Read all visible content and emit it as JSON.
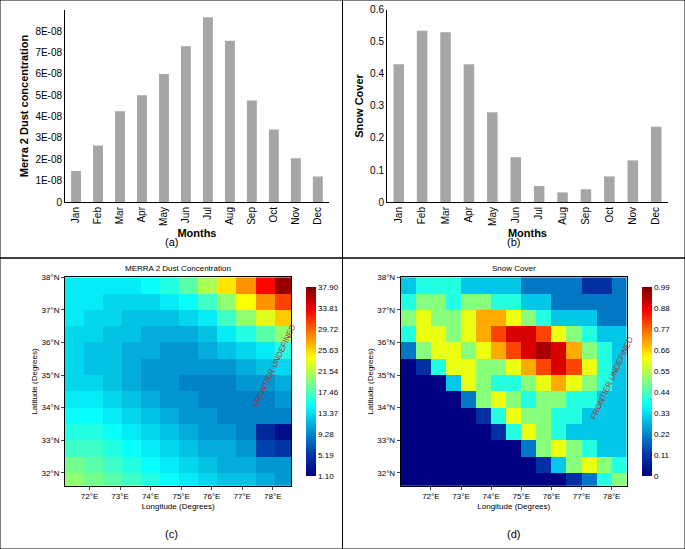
{
  "chart_data": [
    {
      "type": "bar",
      "panel": "(a)",
      "x_label": "Months",
      "y_label": "Merra 2 Dust concentration",
      "categories": [
        "Jan",
        "Feb",
        "Mar",
        "Apr",
        "May",
        "Jun",
        "Jul",
        "Aug",
        "Sep",
        "Oct",
        "Nov",
        "Dec"
      ],
      "values": [
        1.45e-08,
        2.65e-08,
        4.25e-08,
        5e-08,
        6e-08,
        7.3e-08,
        8.65e-08,
        7.55e-08,
        4.75e-08,
        3.4e-08,
        2.05e-08,
        1.2e-08
      ],
      "color": "#a6a6a6",
      "grid": false,
      "ylim": [
        0,
        9e-08
      ],
      "yticks": [
        0,
        {
          "value": 1e-08,
          "label": "1E-08"
        },
        {
          "value": 2e-08,
          "label": "2E-08"
        },
        {
          "value": 3e-08,
          "label": "3E-08"
        },
        {
          "value": 4e-08,
          "label": "4E-08"
        },
        {
          "value": 5e-08,
          "label": "5E-08"
        },
        {
          "value": 6e-08,
          "label": "6E-08"
        },
        {
          "value": 7e-08,
          "label": "7E-08"
        },
        {
          "value": 8e-08,
          "label": "8E-08"
        }
      ]
    },
    {
      "type": "bar",
      "panel": "(b)",
      "x_label": "Months",
      "y_label": "Snow Cover",
      "categories": [
        "Jan",
        "Feb",
        "Mar",
        "Apr",
        "May",
        "Jun",
        "Jul",
        "Aug",
        "Sep",
        "Oct",
        "Nov",
        "Dec"
      ],
      "values": [
        0.43,
        0.535,
        0.53,
        0.43,
        0.28,
        0.14,
        0.05,
        0.03,
        0.04,
        0.08,
        0.13,
        0.235
      ],
      "color": "#a6a6a6",
      "grid": false,
      "ylim": [
        0,
        0.6
      ],
      "yticks": [
        0,
        0.1,
        0.2,
        0.3,
        0.4,
        0.5,
        0.6
      ]
    },
    {
      "type": "heatmap",
      "panel": "(c)",
      "title": "MERRA 2 Dust Concentration",
      "x_label": "Longitude (Degrees)",
      "y_label": "Latitude (Degrees)",
      "xlim": [
        71.2,
        78.6
      ],
      "xticks": [
        {
          "value": 72,
          "label": "72°E"
        },
        {
          "value": 73,
          "label": "73°E"
        },
        {
          "value": 74,
          "label": "74°E"
        },
        {
          "value": 75,
          "label": "75°E"
        },
        {
          "value": 76,
          "label": "76°E"
        },
        {
          "value": 77,
          "label": "77°E"
        },
        {
          "value": 78,
          "label": "78°E"
        }
      ],
      "ylim": [
        31.6,
        38
      ],
      "yticks": [
        {
          "value": 32,
          "label": "32°N"
        },
        {
          "value": 33,
          "label": "33°N"
        },
        {
          "value": 34,
          "label": "34°N"
        },
        {
          "value": 35,
          "label": "35°N"
        },
        {
          "value": 36,
          "label": "36°N"
        },
        {
          "value": 37,
          "label": "37°N"
        },
        {
          "value": 38,
          "label": "38°N"
        }
      ],
      "x": [
        71.5,
        72.125,
        72.75,
        73.375,
        74.0,
        74.625,
        75.25,
        75.875,
        76.5,
        77.125,
        77.75,
        78.375
      ],
      "y": [
        31.75,
        32.25,
        32.75,
        33.25,
        33.75,
        34.25,
        34.75,
        35.25,
        35.75,
        36.25,
        36.75,
        37.25,
        37.75
      ],
      "z": [
        [
          20,
          19,
          18,
          17,
          16,
          15,
          14,
          13,
          12,
          12,
          11,
          10
        ],
        [
          19,
          18,
          17,
          16,
          15,
          14,
          13,
          12,
          11,
          11,
          10,
          10
        ],
        [
          17,
          17,
          16,
          15,
          14,
          13,
          12,
          11,
          11,
          10,
          6,
          5
        ],
        [
          16,
          16,
          15,
          14,
          13,
          12,
          11,
          10,
          10,
          9,
          4,
          2
        ],
        [
          15,
          15,
          14,
          13,
          12,
          11,
          10,
          10,
          9,
          9,
          9,
          9
        ],
        [
          14,
          14,
          13,
          12,
          11,
          10,
          10,
          9,
          9,
          9,
          9,
          10
        ],
        [
          13,
          13,
          12,
          11,
          10,
          10,
          9,
          9,
          9,
          10,
          10,
          11
        ],
        [
          13,
          12,
          12,
          11,
          10,
          10,
          10,
          10,
          10,
          11,
          12,
          13
        ],
        [
          13,
          12,
          12,
          11,
          11,
          10,
          10,
          11,
          12,
          13,
          14,
          16
        ],
        [
          13,
          13,
          12,
          12,
          11,
          11,
          11,
          12,
          14,
          16,
          18,
          20
        ],
        [
          14,
          13,
          13,
          12,
          12,
          12,
          13,
          14,
          17,
          20,
          23,
          26
        ],
        [
          14,
          14,
          13,
          13,
          13,
          14,
          15,
          17,
          20,
          24,
          28,
          31
        ],
        [
          14,
          14,
          14,
          14,
          15,
          16,
          18,
          21,
          25,
          28,
          33,
          37
        ]
      ],
      "zlim": [
        1.1,
        37.9
      ],
      "zticks": [
        {
          "value": 1.1,
          "label": "1.10"
        },
        5.19,
        9.28,
        13.37,
        17.46,
        21.54,
        25.63,
        29.72,
        33.81,
        {
          "value": 37.9,
          "label": "37.90"
        }
      ],
      "annotations": [
        {
          "text": "FRONTIER UNDEFINED",
          "x": 78.05,
          "y": 35.3
        }
      ]
    },
    {
      "type": "heatmap",
      "panel": "(d)",
      "title": "Snow Cover",
      "x_label": "Longitude (Degrees)",
      "y_label": "Latitude (Degrees)",
      "xlim": [
        71.0,
        78.5
      ],
      "xticks": [
        {
          "value": 72,
          "label": "72°E"
        },
        {
          "value": 73,
          "label": "73°E"
        },
        {
          "value": 74,
          "label": "74°E"
        },
        {
          "value": 75,
          "label": "75°E"
        },
        {
          "value": 76,
          "label": "76°E"
        },
        {
          "value": 77,
          "label": "77°E"
        },
        {
          "value": 78,
          "label": "78°E"
        }
      ],
      "ylim": [
        31.6,
        38
      ],
      "yticks": [
        {
          "value": 32,
          "label": "32°N"
        },
        {
          "value": 33,
          "label": "33°N"
        },
        {
          "value": 34,
          "label": "34°N"
        },
        {
          "value": 35,
          "label": "35°N"
        },
        {
          "value": 36,
          "label": "36°N"
        },
        {
          "value": 37,
          "label": "37°N"
        },
        {
          "value": 38,
          "label": "38°N"
        }
      ],
      "x": [
        71.25,
        71.75,
        72.25,
        72.75,
        73.25,
        73.75,
        74.25,
        74.75,
        75.25,
        75.75,
        76.25,
        76.75,
        77.25,
        77.75,
        78.25
      ],
      "y": [
        31.75,
        32.25,
        32.75,
        33.25,
        33.75,
        34.25,
        34.75,
        35.25,
        35.75,
        36.25,
        36.75,
        37.25,
        37.75
      ],
      "z": [
        [
          0,
          0,
          0,
          0,
          0,
          0,
          0,
          0,
          0,
          0,
          0,
          0.1,
          0.2,
          0.4,
          0.5
        ],
        [
          0,
          0,
          0,
          0,
          0,
          0,
          0,
          0,
          0,
          0.1,
          0.3,
          0.5,
          0.6,
          0.5,
          0.4
        ],
        [
          0,
          0,
          0,
          0,
          0,
          0,
          0,
          0,
          0.2,
          0.5,
          0.6,
          0.5,
          0.4,
          0.3,
          0.3
        ],
        [
          0,
          0,
          0,
          0,
          0,
          0,
          0.1,
          0.4,
          0.6,
          0.5,
          0.4,
          0.3,
          0.3,
          0.3,
          0.3
        ],
        [
          0,
          0,
          0,
          0,
          0,
          0.1,
          0.4,
          0.6,
          0.5,
          0.5,
          0.4,
          0.4,
          0.3,
          0.3,
          0.3
        ],
        [
          0,
          0,
          0,
          0,
          0.2,
          0.5,
          0.6,
          0.5,
          0.4,
          0.5,
          0.5,
          0.4,
          0.4,
          0.3,
          0.3
        ],
        [
          0,
          0,
          0,
          0.3,
          0.6,
          0.5,
          0.4,
          0.4,
          0.5,
          0.6,
          0.7,
          0.6,
          0.5,
          0.4,
          0.3
        ],
        [
          0,
          0.1,
          0.4,
          0.6,
          0.6,
          0.5,
          0.5,
          0.6,
          0.7,
          0.8,
          0.9,
          0.8,
          0.6,
          0.4,
          0.3
        ],
        [
          0.2,
          0.5,
          0.6,
          0.6,
          0.5,
          0.6,
          0.7,
          0.8,
          0.9,
          0.95,
          0.9,
          0.7,
          0.5,
          0.4,
          0.3
        ],
        [
          0.4,
          0.6,
          0.6,
          0.5,
          0.6,
          0.7,
          0.8,
          0.9,
          0.9,
          0.8,
          0.6,
          0.5,
          0.4,
          0.3,
          0.3
        ],
        [
          0.5,
          0.6,
          0.5,
          0.5,
          0.6,
          0.7,
          0.7,
          0.6,
          0.5,
          0.4,
          0.3,
          0.3,
          0.3,
          0.2,
          0.2
        ],
        [
          0.4,
          0.5,
          0.5,
          0.4,
          0.5,
          0.5,
          0.4,
          0.4,
          0.3,
          0.3,
          0.2,
          0.2,
          0.2,
          0.2,
          0.2
        ],
        [
          0.3,
          0.4,
          0.4,
          0.4,
          0.3,
          0.3,
          0.3,
          0.3,
          0.2,
          0.2,
          0.2,
          0.2,
          0.1,
          0.1,
          0.2
        ]
      ],
      "zlim": [
        0,
        0.99
      ],
      "zticks": [
        0,
        0.11,
        0.22,
        0.33,
        0.44,
        0.55,
        0.66,
        0.77,
        0.88,
        0.99
      ],
      "annotations": [
        {
          "text": "FRONTIER UNDEFINED",
          "x": 78.0,
          "y": 34.9
        }
      ]
    }
  ]
}
